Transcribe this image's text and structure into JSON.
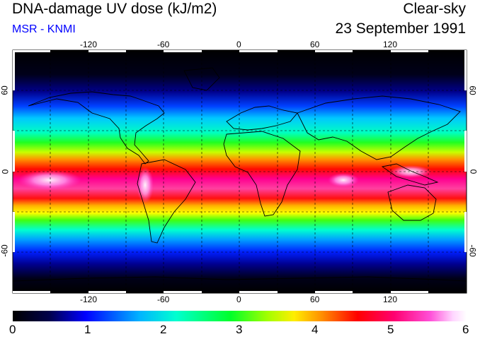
{
  "header": {
    "title": "DNA-damage UV dose (kJ/m2)",
    "subtitle": "MSR - KNMI",
    "condition": "Clear-sky",
    "date": "23 September 1991"
  },
  "map": {
    "lon_ticks": [
      "-120",
      "-60",
      "0",
      "60",
      "120"
    ],
    "lat_ticks": [
      "60",
      "0",
      "-60"
    ],
    "lon_range": [
      -180,
      180
    ],
    "lat_range": [
      -90,
      90
    ],
    "gridlines": "dashed",
    "color_stops": [
      "#000000",
      "#00004a",
      "#0000ff",
      "#00b4ff",
      "#00ffd0",
      "#00ff2a",
      "#a0ff00",
      "#ffee00",
      "#ff9000",
      "#ff0000",
      "#ff0070",
      "#ff50d8",
      "#ffd6ff",
      "#ffffff"
    ]
  },
  "colorbar": {
    "labels": [
      "0",
      "1",
      "2",
      "3",
      "4",
      "5",
      "6"
    ],
    "range": [
      0,
      6
    ]
  }
}
